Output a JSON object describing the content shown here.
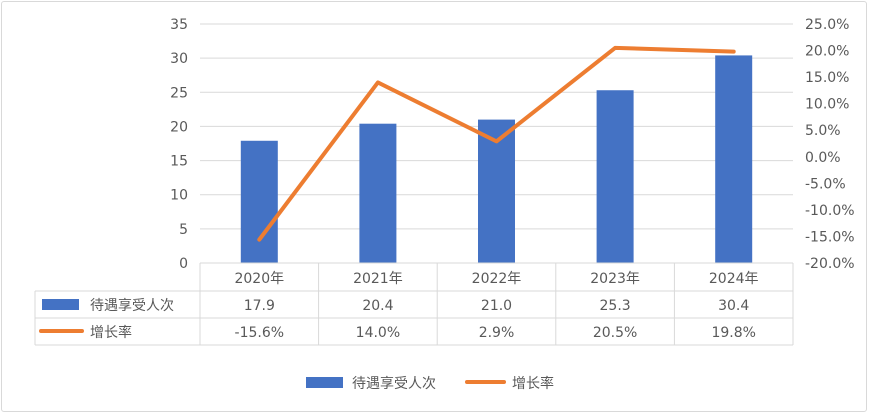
{
  "chart_data": {
    "type": "bar+line",
    "categories": [
      "2020年",
      "2021年",
      "2022年",
      "2023年",
      "2024年"
    ],
    "series": [
      {
        "name": "待遇享受人次",
        "type": "bar",
        "axis": "left",
        "values": [
          17.9,
          20.4,
          21.0,
          25.3,
          30.4
        ],
        "labels": [
          "17.9",
          "20.4",
          "21.0",
          "25.3",
          "30.4"
        ],
        "color": "#4472c4"
      },
      {
        "name": "增长率",
        "type": "line",
        "axis": "right",
        "values": [
          -15.6,
          14.0,
          2.9,
          20.5,
          19.8
        ],
        "labels": [
          "-15.6%",
          "14.0%",
          "2.9%",
          "20.5%",
          "19.8%"
        ],
        "color": "#ed7d31"
      }
    ],
    "left_axis": {
      "ylim": [
        0,
        35
      ],
      "ticks": [
        "0",
        "5",
        "10",
        "15",
        "20",
        "25",
        "30",
        "35"
      ]
    },
    "right_axis": {
      "ylim": [
        -20,
        25
      ],
      "ticks": [
        "-20.0%",
        "-15.0%",
        "-10.0%",
        "-5.0%",
        "0.0%",
        "5.0%",
        "10.0%",
        "15.0%",
        "20.0%",
        "25.0%"
      ]
    },
    "grid": true,
    "data_table": true,
    "legend": "bottom"
  }
}
